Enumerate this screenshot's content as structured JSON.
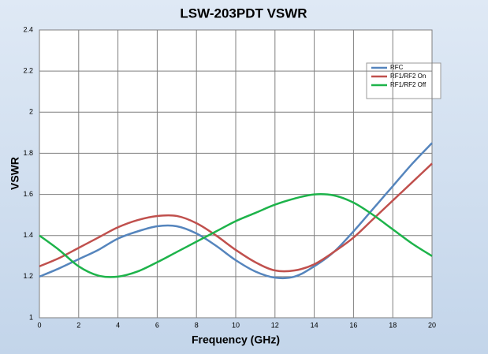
{
  "chart_data": {
    "type": "line",
    "title": "LSW-203PDT VSWR",
    "x_label": "Frequency (GHz)",
    "y_label": "VSWR",
    "x": [
      0,
      1,
      2,
      3,
      4,
      5,
      6,
      7,
      8,
      9,
      10,
      11,
      12,
      13,
      14,
      15,
      16,
      17,
      18,
      19,
      20
    ],
    "series": [
      {
        "name": "RFC",
        "color": "#5585bd",
        "values": [
          1.2,
          1.24,
          1.285,
          1.33,
          1.385,
          1.42,
          1.445,
          1.445,
          1.41,
          1.35,
          1.28,
          1.225,
          1.195,
          1.2,
          1.25,
          1.32,
          1.42,
          1.53,
          1.64,
          1.75,
          1.85
        ]
      },
      {
        "name": "RF1/RF2 On",
        "color": "#c0504d",
        "values": [
          1.25,
          1.29,
          1.34,
          1.39,
          1.44,
          1.475,
          1.495,
          1.495,
          1.46,
          1.4,
          1.33,
          1.27,
          1.23,
          1.23,
          1.26,
          1.32,
          1.39,
          1.48,
          1.57,
          1.66,
          1.75
        ]
      },
      {
        "name": "RF1/RF2 Off",
        "color": "#1db34a",
        "values": [
          1.4,
          1.33,
          1.25,
          1.205,
          1.2,
          1.225,
          1.27,
          1.32,
          1.37,
          1.42,
          1.47,
          1.51,
          1.55,
          1.58,
          1.6,
          1.595,
          1.56,
          1.5,
          1.43,
          1.36,
          1.3
        ]
      }
    ],
    "xlim": [
      0,
      20
    ],
    "xticks": [
      0,
      2,
      4,
      6,
      8,
      10,
      12,
      14,
      16,
      18,
      20
    ],
    "ylim": [
      1,
      2.4
    ],
    "yticks": [
      1,
      1.2,
      1.4,
      1.6,
      1.8,
      2,
      2.2,
      2.4
    ],
    "grid": true,
    "legend": "upper right"
  }
}
